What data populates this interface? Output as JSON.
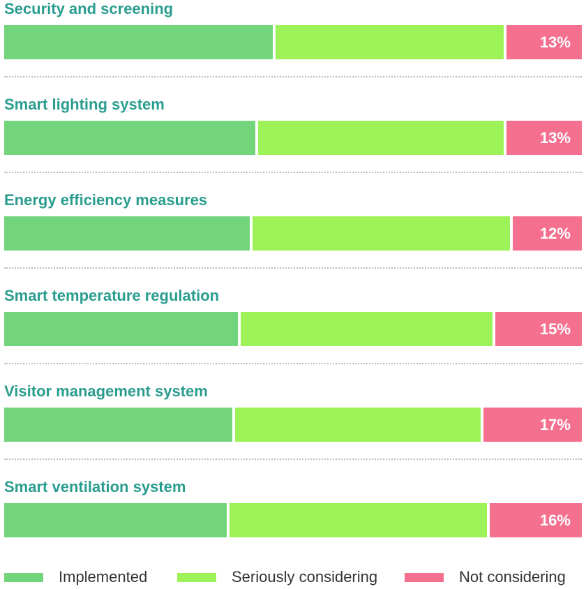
{
  "chart_data": {
    "type": "bar",
    "orientation": "horizontal",
    "stacked": true,
    "percent": true,
    "categories": [
      "Security and screening",
      "Smart lighting system",
      "Energy efficiency measures",
      "Smart temperature regulation",
      "Visitor management system",
      "Smart ventilation system"
    ],
    "series": [
      {
        "name": "Implemented",
        "color": "#72d57c",
        "values": [
          47,
          44,
          43,
          41,
          40,
          39
        ]
      },
      {
        "name": "Seriously considering",
        "color": "#9cf256",
        "values": [
          40,
          43,
          45,
          44,
          43,
          45
        ]
      },
      {
        "name": "Not considering",
        "color": "#f5708f",
        "values": [
          13,
          13,
          12,
          15,
          17,
          16
        ]
      }
    ],
    "data_labels": [
      "13%",
      "13%",
      "12%",
      "15%",
      "17%",
      "16%"
    ],
    "legend": [
      "Implemented",
      "Seriously considering",
      "Not considering"
    ],
    "legend_position": "bottom"
  }
}
